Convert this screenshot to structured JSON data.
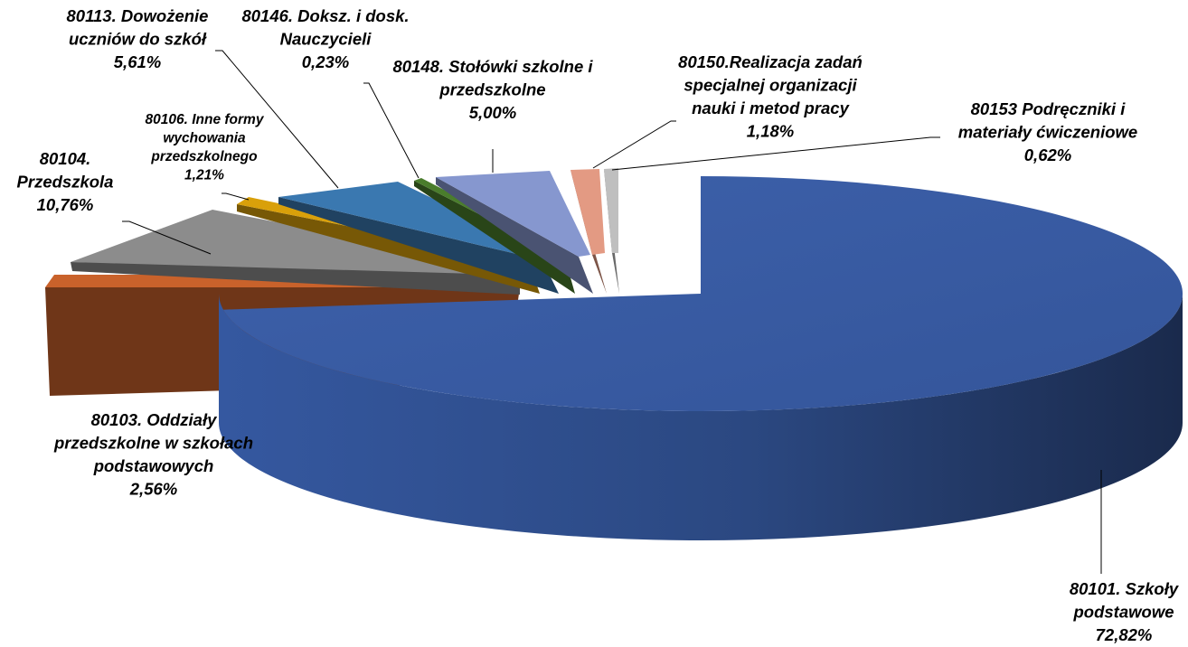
{
  "chart_data": {
    "type": "pie",
    "style": "3d-exploded",
    "title": "",
    "slices": [
      {
        "name": "80101. Szkoły podstawowe",
        "value": 72.82,
        "value_label": "72,82%",
        "color": "#3a5da6",
        "label_lines": [
          "80101. Szkoły",
          "podstawowe",
          "72,82%"
        ]
      },
      {
        "name": "80103. Oddziały przedszkolne w szkołach podstawowych",
        "value": 2.56,
        "value_label": "2,56%",
        "color": "#c9622b",
        "label_lines": [
          "80103. Oddziały",
          "przedszkolne w szkołach",
          "podstawowych",
          "2,56%"
        ]
      },
      {
        "name": "80104. Przedszkola",
        "value": 10.76,
        "value_label": "10,76%",
        "color": "#8c8c8c",
        "label_lines": [
          "80104.",
          "Przedszkola",
          "10,76%"
        ]
      },
      {
        "name": "80106. Inne formy wychowania przedszkolnego",
        "value": 1.21,
        "value_label": "1,21%",
        "color": "#d9a00a",
        "label_lines": [
          "80106. Inne formy",
          "wychowania",
          "przedszkolnego",
          "1,21%"
        ]
      },
      {
        "name": "80113. Dowożenie uczniów do szkół",
        "value": 5.61,
        "value_label": "5,61%",
        "color": "#3a78b0",
        "label_lines": [
          "80113. Dowożenie",
          "uczniów do szkół",
          "5,61%"
        ]
      },
      {
        "name": "80146. Doksz. i dosk. Nauczycieli",
        "value": 0.23,
        "value_label": "0,23%",
        "color": "#4a7d2c",
        "label_lines": [
          "80146. Doksz. i dosk.",
          "Nauczycieli",
          "0,23%"
        ]
      },
      {
        "name": "80148. Stołówki szkolne i przedszkolne",
        "value": 5.0,
        "value_label": "5,00%",
        "color": "#8697cf",
        "label_lines": [
          "80148. Stołówki szkolne i",
          "przedszkolne",
          "5,00%"
        ]
      },
      {
        "name": "80150.Realizacja zadań specjalnej organizacji nauki i metod pracy",
        "value": 1.18,
        "value_label": "1,18%",
        "color": "#e39a83",
        "label_lines": [
          "80150.Realizacja zadań",
          "specjalnej organizacji",
          "nauki i metod pracy",
          "1,18%"
        ]
      },
      {
        "name": "80153 Podręczniki i materiały ćwiczeniowe",
        "value": 0.62,
        "value_label": "0,62%",
        "color": "#bfbfbf",
        "label_lines": [
          "80153 Podręczniki i",
          "materiały ćwiczeniowe",
          "0,62%"
        ]
      }
    ]
  }
}
